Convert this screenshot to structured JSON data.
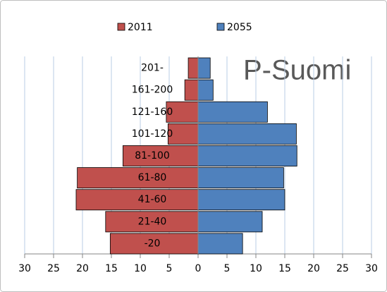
{
  "chart_data": {
    "type": "pyramid",
    "annotation": "P-Suomi",
    "categories": [
      "-20",
      "21-40",
      "41-60",
      "61-80",
      "81-100",
      "101-120",
      "121-160",
      "161-200",
      "201-"
    ],
    "series": [
      {
        "name": "2011",
        "color": "#c0504d",
        "values": [
          -15.2,
          -16.0,
          -21.1,
          -20.9,
          -13.0,
          -5.2,
          -5.5,
          -2.3,
          -1.7
        ]
      },
      {
        "name": "2055",
        "color": "#4f81bd",
        "values": [
          7.7,
          11.1,
          15.0,
          14.8,
          17.1,
          17.0,
          12.0,
          2.6,
          2.1
        ]
      }
    ],
    "xlim": [
      -30,
      30
    ],
    "xticks": [
      {
        "value": -30,
        "label": "30"
      },
      {
        "value": -25,
        "label": "25"
      },
      {
        "value": -20,
        "label": "20"
      },
      {
        "value": -15,
        "label": "15"
      },
      {
        "value": -10,
        "label": "10"
      },
      {
        "value": -5,
        "label": "5"
      },
      0,
      5,
      10,
      15,
      20,
      25,
      30
    ],
    "grid": true,
    "legend": "top"
  }
}
